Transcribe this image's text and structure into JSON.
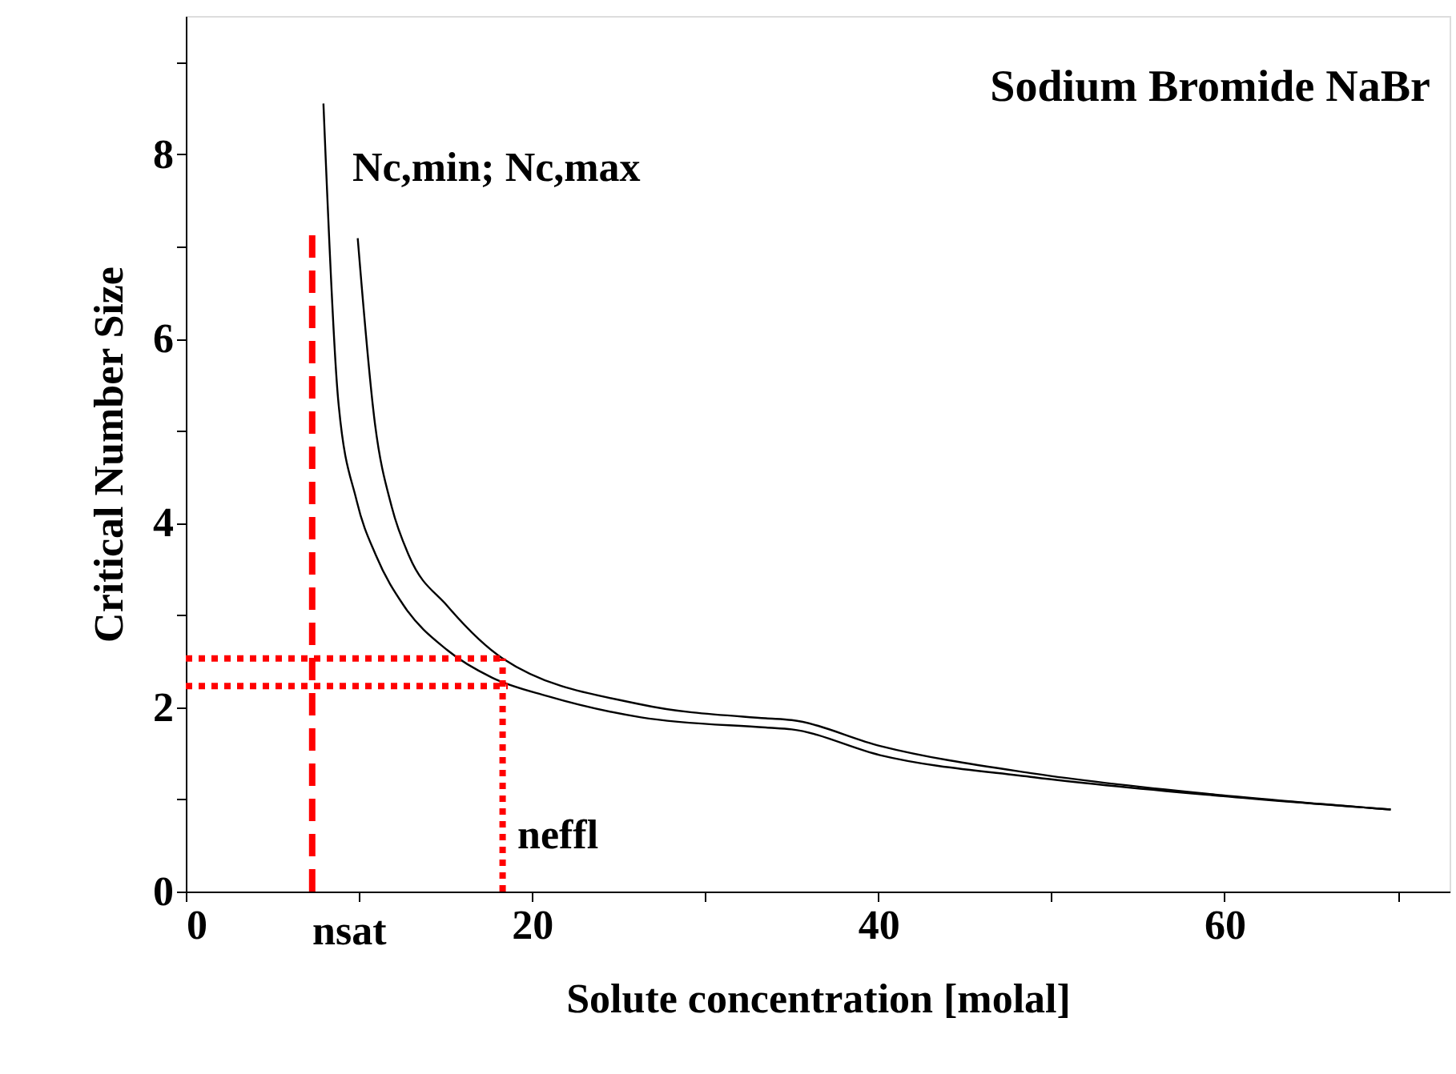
{
  "chart_data": {
    "type": "line",
    "title": "Sodium Bromide NaBr",
    "xlabel": "Solute concentration [molal]",
    "ylabel": "Critical Number Size",
    "xlim": [
      0,
      73
    ],
    "ylim": [
      0,
      9.5
    ],
    "xticks": [
      0,
      {
        "value": 10,
        "label": null
      },
      20,
      {
        "value": 30,
        "label": null
      },
      40,
      {
        "value": 50,
        "label": null
      },
      60,
      {
        "value": 70,
        "label": null
      }
    ],
    "yticks": [
      0,
      {
        "value": 1,
        "label": null
      },
      2,
      {
        "value": 3,
        "label": null
      },
      4,
      {
        "value": 5,
        "label": null
      },
      6,
      {
        "value": 7,
        "label": null
      },
      8,
      {
        "value": 9,
        "label": null
      }
    ],
    "grid": false,
    "marker": "none",
    "series": [
      {
        "color": "#000000",
        "line_style": "solid",
        "x": [
          7.95,
          8.8,
          9.87,
          11.0,
          12.6,
          15.1,
          17.7,
          20.9,
          26.3,
          33.5,
          35.0,
          40.1,
          49.0,
          59.6,
          69.6
        ],
        "values": [
          8.55,
          5.34,
          4.24,
          3.64,
          3.1,
          2.62,
          2.32,
          2.12,
          1.89,
          1.78,
          1.76,
          1.48,
          1.24,
          1.04,
          0.89
        ]
      },
      {
        "color": "#000000",
        "line_style": "solid",
        "x": [
          9.93,
          10.93,
          11.9,
          12.9,
          15.1,
          18.3,
          26.3,
          33.5,
          35.0,
          40.1,
          49.0,
          59.6,
          69.6
        ],
        "values": [
          7.09,
          5.07,
          4.17,
          3.64,
          3.1,
          2.53,
          2.03,
          1.88,
          1.86,
          1.58,
          1.28,
          1.05,
          0.89
        ]
      },
      {
        "color": "#ff0000",
        "line_style": "dashed",
        "x": [
          7.3,
          7.3
        ],
        "values": [
          0,
          7.13
        ]
      },
      {
        "color": "#ff0000",
        "line_style": "dotted",
        "x": [
          18.3,
          18.3
        ],
        "values": [
          0,
          2.53
        ]
      },
      {
        "color": "#ff0000",
        "line_style": "dotted",
        "x": [
          0,
          18.3
        ],
        "values": [
          2.53,
          2.53
        ]
      },
      {
        "color": "#ff0000",
        "line_style": "dotted",
        "x": [
          0,
          18.6
        ],
        "values": [
          2.23,
          2.23
        ]
      }
    ],
    "annotations": [
      "Nc,min; Nc,max",
      "neffl",
      "nsat"
    ]
  }
}
